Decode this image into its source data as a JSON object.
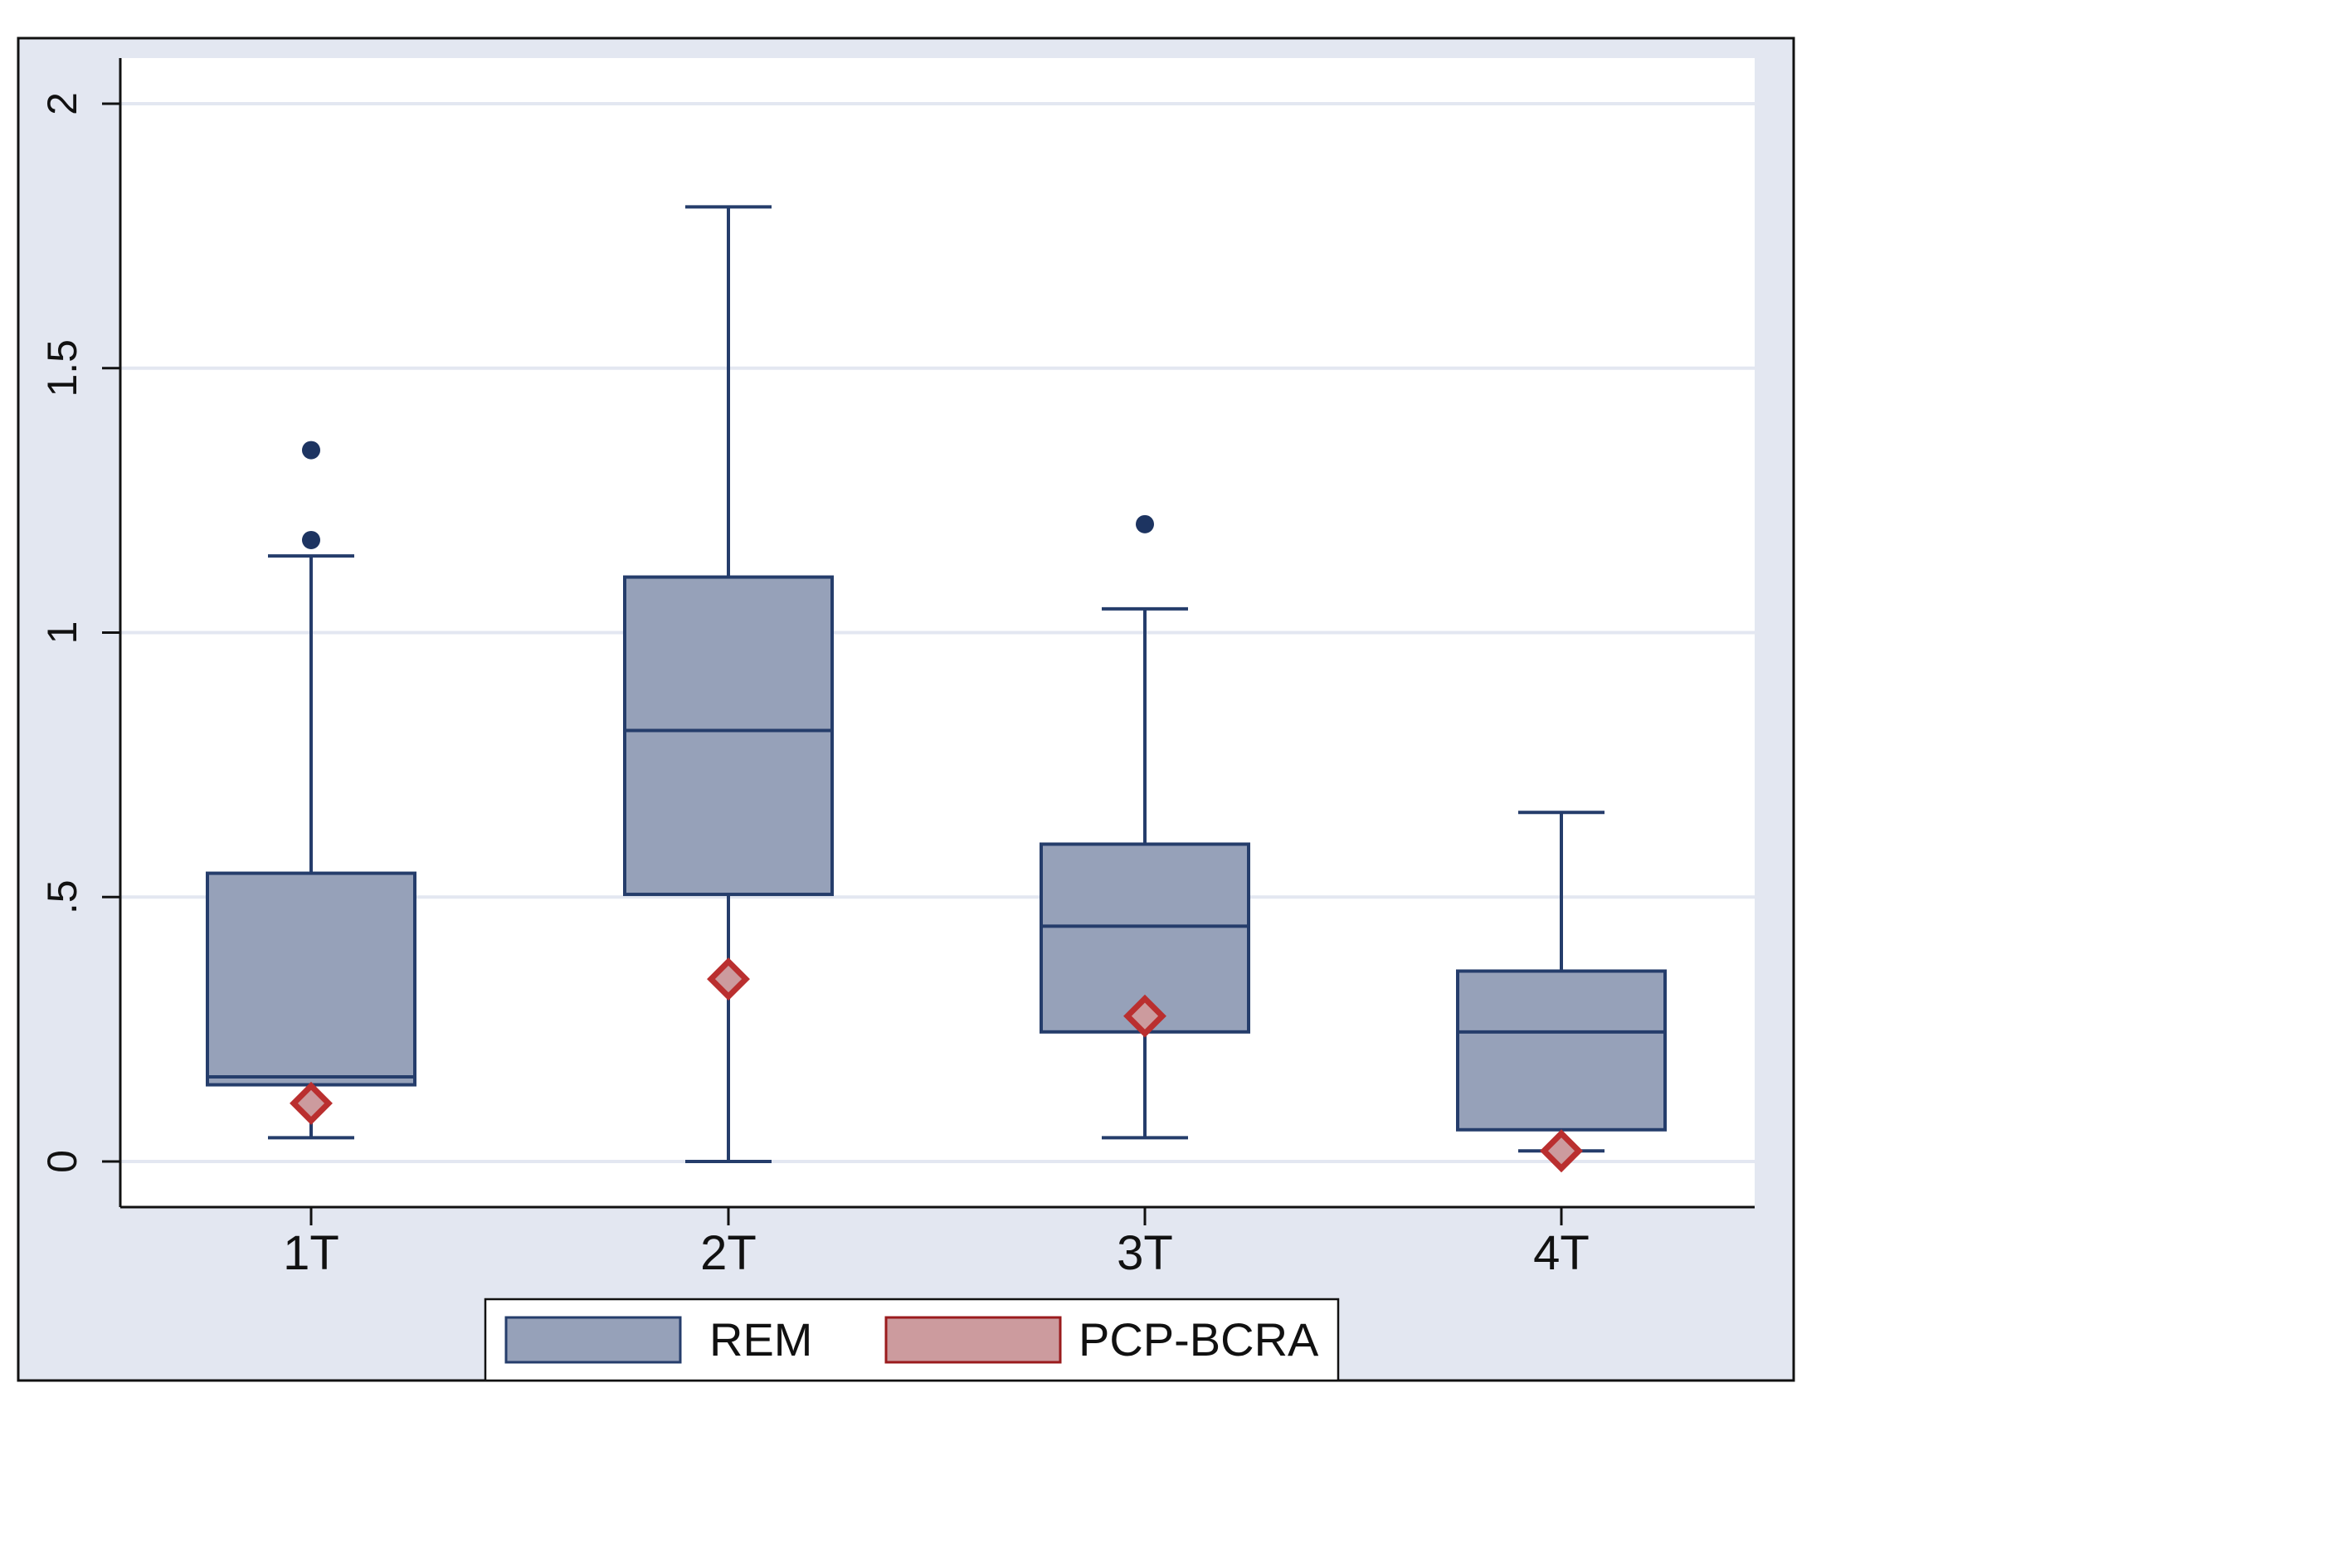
{
  "chart_data": {
    "type": "box",
    "categories": [
      "1T",
      "2T",
      "3T",
      "4T"
    ],
    "ylim": [
      -0.09,
      2.08
    ],
    "yticks": [
      {
        "value": 0,
        "label": "0"
      },
      {
        "value": 0.5,
        "label": ".5"
      },
      {
        "value": 1,
        "label": "1"
      },
      {
        "value": 1.5,
        "label": "1.5"
      },
      {
        "value": 2,
        "label": "2"
      }
    ],
    "grid": true,
    "legend_position": "bottom",
    "series": [
      {
        "name": "REM",
        "color": "#96a1b9",
        "edge_color": "#253d6b",
        "boxes": [
          {
            "category": "1T",
            "whisker_low": 0.045,
            "q1": 0.145,
            "median": 0.16,
            "q3": 0.545,
            "whisker_high": 1.145,
            "outliers": [
              1.175,
              1.345
            ]
          },
          {
            "category": "2T",
            "whisker_low": 0.0,
            "q1": 0.505,
            "median": 0.815,
            "q3": 1.105,
            "whisker_high": 1.805,
            "outliers": []
          },
          {
            "category": "3T",
            "whisker_low": 0.045,
            "q1": 0.245,
            "median": 0.445,
            "q3": 0.6,
            "whisker_high": 1.045,
            "outliers": [
              1.205
            ]
          },
          {
            "category": "4T",
            "whisker_low": 0.02,
            "q1": 0.06,
            "median": 0.245,
            "q3": 0.36,
            "whisker_high": 0.66,
            "outliers": []
          }
        ]
      },
      {
        "name": "PCP-BCRA",
        "color": "#cc9b9e",
        "marker_color": "#ba2f2f",
        "edge_color": "#9a1b1d",
        "points": [
          {
            "category": "1T",
            "value": 0.11
          },
          {
            "category": "2T",
            "value": 0.345
          },
          {
            "category": "3T",
            "value": 0.275
          },
          {
            "category": "4T",
            "value": 0.02
          }
        ]
      }
    ]
  }
}
